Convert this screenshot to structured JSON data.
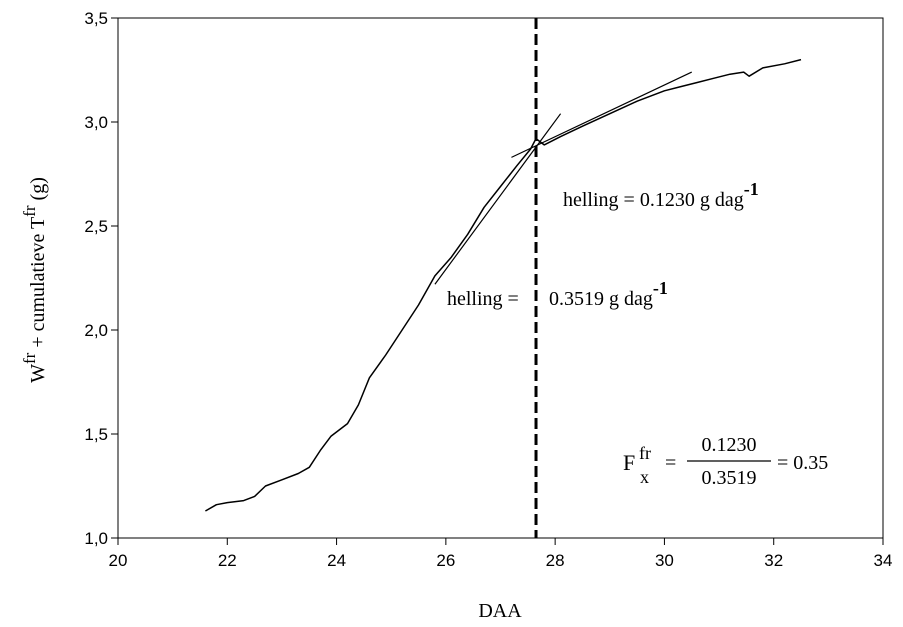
{
  "chart_data": {
    "type": "line",
    "xlabel": "DAA",
    "ylabel": {
      "base1": "W",
      "sup1": "fr",
      "middle": " + cumulatieve T",
      "sup2": "fr",
      "unit": " (g)"
    },
    "xlim": [
      20,
      34
    ],
    "ylim": [
      1.0,
      3.5
    ],
    "xticks": [
      "20",
      "22",
      "24",
      "26",
      "28",
      "30",
      "32",
      "34"
    ],
    "yticks": [
      "1,0",
      "1,5",
      "2,0",
      "2,5",
      "3,0",
      "3,5"
    ],
    "grid": false,
    "legend": "none",
    "series": [
      {
        "x": [
          21.6,
          21.8,
          22.0,
          22.3,
          22.5,
          22.7,
          23.0,
          23.3,
          23.5,
          23.7,
          23.9,
          24.2,
          24.4,
          24.6,
          24.9,
          25.2,
          25.5,
          25.8,
          26.1,
          26.4,
          26.7,
          27.0,
          27.3,
          27.55,
          27.65,
          27.8,
          28.1,
          28.5,
          29.0,
          29.5,
          30.0,
          30.3,
          30.6,
          30.9,
          31.2,
          31.45,
          31.55,
          31.8,
          32.2,
          32.5
        ],
        "y": [
          1.13,
          1.16,
          1.17,
          1.18,
          1.2,
          1.25,
          1.28,
          1.31,
          1.34,
          1.42,
          1.49,
          1.55,
          1.64,
          1.77,
          1.88,
          2.0,
          2.12,
          2.26,
          2.35,
          2.46,
          2.59,
          2.69,
          2.79,
          2.87,
          2.92,
          2.89,
          2.93,
          2.98,
          3.04,
          3.1,
          3.15,
          3.17,
          3.19,
          3.21,
          3.23,
          3.24,
          3.22,
          3.26,
          3.28,
          3.3
        ]
      }
    ],
    "tangents": [
      {
        "x": [
          25.8,
          28.1
        ],
        "y": [
          2.22,
          3.04
        ]
      },
      {
        "x": [
          27.2,
          30.5
        ],
        "y": [
          2.83,
          3.24
        ]
      }
    ],
    "vline_x": 27.65,
    "annotations": {
      "slope1": {
        "text": "helling = 0.1230 g dag",
        "sup": "-1"
      },
      "slope2_left": "helling =",
      "slope2_right": {
        "text": "0.3519 g dag",
        "sup": "-1"
      },
      "formula": {
        "lhs": "F",
        "lhs_sup": "fr",
        "lhs_sub": "x",
        "numerator": "0.1230",
        "denominator": "0.3519",
        "result": "= 0.35"
      }
    }
  }
}
